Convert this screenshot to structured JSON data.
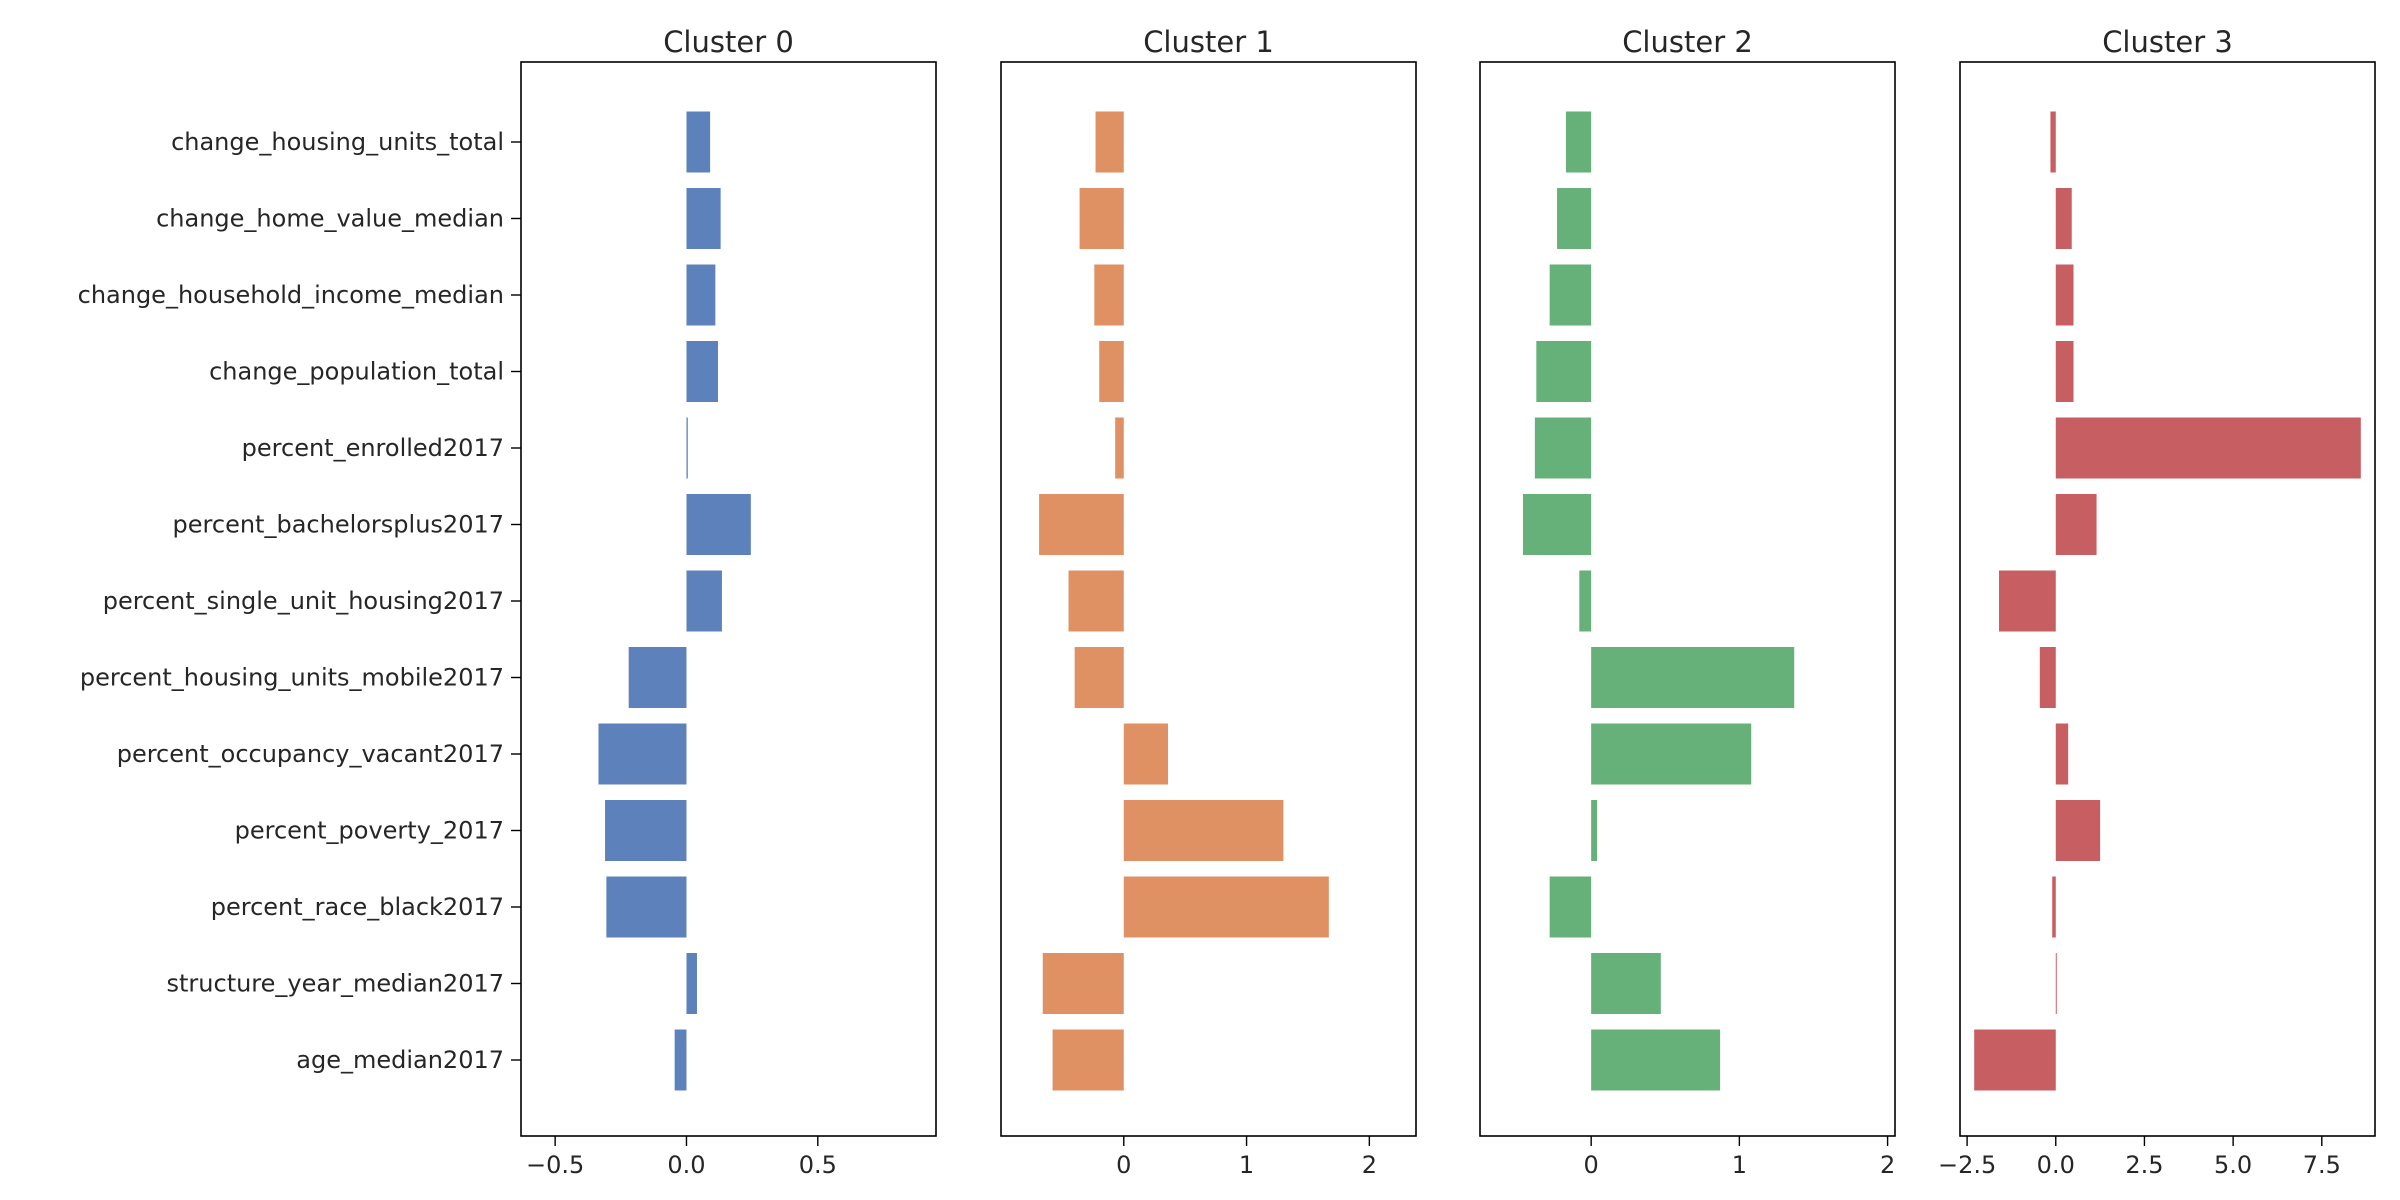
{
  "chart_data": {
    "type": "bar",
    "orientation": "horizontal",
    "layout": "small-multiples",
    "categories": [
      "change_housing_units_total",
      "change_home_value_median",
      "change_household_income_median",
      "change_population_total",
      "percent_enrolled2017",
      "percent_bachelorsplus2017",
      "percent_single_unit_housing2017",
      "percent_housing_units_mobile2017",
      "percent_occupancy_vacant2017",
      "percent_poverty_2017",
      "percent_race_black2017",
      "structure_year_median2017",
      "age_median2017"
    ],
    "grid": false,
    "legend": "none",
    "panels": [
      {
        "title": "Cluster 0",
        "color": "#5d81ba",
        "xlim": [
          -0.63,
          0.95
        ],
        "xticks": [
          -0.5,
          0.0,
          0.5
        ],
        "xtick_labels": [
          "−0.5",
          "0.0",
          "0.5"
        ],
        "values": [
          0.09,
          0.13,
          0.11,
          0.12,
          0.005,
          0.245,
          0.135,
          -0.22,
          -0.335,
          -0.31,
          -0.305,
          0.04,
          -0.045
        ]
      },
      {
        "title": "Cluster 1",
        "color": "#e09163",
        "xlim": [
          -1.0,
          2.38
        ],
        "xticks": [
          0,
          1,
          2
        ],
        "xtick_labels": [
          "0",
          "1",
          "2"
        ],
        "values": [
          -0.23,
          -0.36,
          -0.24,
          -0.2,
          -0.07,
          -0.69,
          -0.45,
          -0.4,
          0.36,
          1.3,
          1.67,
          -0.66,
          -0.58
        ]
      },
      {
        "title": "Cluster 2",
        "color": "#66b07a",
        "xlim": [
          -0.75,
          2.05
        ],
        "xticks": [
          0,
          1,
          2
        ],
        "xtick_labels": [
          "0",
          "1",
          "2"
        ],
        "values": [
          -0.17,
          -0.23,
          -0.28,
          -0.37,
          -0.38,
          -0.46,
          -0.08,
          1.37,
          1.08,
          0.04,
          -0.28,
          0.47,
          0.87
        ]
      },
      {
        "title": "Cluster 3",
        "color": "#c75e62",
        "xlim": [
          -2.7,
          9.0
        ],
        "xticks": [
          -2.5,
          0.0,
          2.5,
          5.0,
          7.5
        ],
        "xtick_labels": [
          "−2.5",
          "0.0",
          "2.5",
          "5.0",
          "7.5"
        ],
        "values": [
          -0.15,
          0.45,
          0.5,
          0.5,
          8.6,
          1.15,
          -1.6,
          -0.45,
          0.35,
          1.25,
          -0.1,
          0.0,
          -2.3
        ]
      }
    ]
  }
}
